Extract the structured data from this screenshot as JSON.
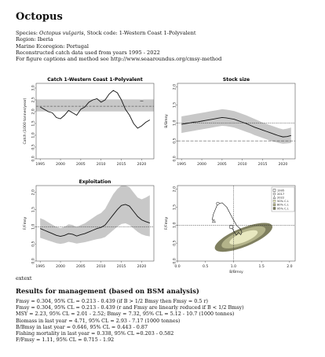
{
  "header": {
    "title": "Octopus",
    "species_prefix": "Species: ",
    "species_italic": "Octopus vulgaris",
    "species_suffix": ", Stock code: 1-Western Coast 1-Polyvalent",
    "region": "Region: Iberia",
    "ecoregion": "Marine Ecoregion: Portugal",
    "catch_years": "Reconstructed catch data used from years 1995 - 2022",
    "figure_note": "For figure captions and method see http://www.seaaroundus.org/cmsy-method"
  },
  "caption_tag": "extext",
  "results": {
    "heading": "Results for management (based on BSM analysis)",
    "lines": [
      "Fmsy = 0.304, 95% CL = 0.213 - 0.439 (if B > 1/2 Bmsy then Fmsy = 0.5 r)",
      "Fmsy = 0.304, 95% CL = 0.213 - 0.439 (r and Fmsy are linearly reduced if B < 1/2 Bmsy)",
      "MSY = 2.23, 95% CL = 2.01 - 2.52; Bmsy = 7.32, 95% CL = 5.12 - 10.7 (1000 tonnes)",
      "Biomass in last year = 4.71, 95% CL = 2.93 - 7.17 (1000 tonnes)",
      "B/Bmsy in last year = 0.646, 95% CL = 0.443 - 0.87",
      "Fishing mortality in last year = 0.338, 95% CL =0.203 - 0.582",
      "F/Fmsy = 1.11, 95% CL = 0.715 - 1.92"
    ]
  },
  "chart_data": [
    {
      "id": "catch",
      "type": "line",
      "title": "Catch 1-Western Coast 1-Polyvalent",
      "ylabel": "Catch (1000 tonnes/year)",
      "xlabel": "",
      "xlim": [
        1994,
        2023
      ],
      "ylim": [
        0,
        3.2
      ],
      "xticks": [
        1995,
        2000,
        2005,
        2010,
        2015,
        2020
      ],
      "yticks": [
        0.0,
        0.5,
        1.0,
        1.5,
        2.0,
        2.5,
        3.0
      ],
      "msy": 2.23,
      "msy_ci": [
        2.01,
        2.52
      ],
      "x": [
        1995,
        1996,
        1997,
        1998,
        1999,
        2000,
        2001,
        2002,
        2003,
        2004,
        2005,
        2006,
        2007,
        2008,
        2009,
        2010,
        2011,
        2012,
        2013,
        2014,
        2015,
        2016,
        2017,
        2018,
        2019,
        2020,
        2021,
        2022
      ],
      "values": [
        2.2,
        2.1,
        2.0,
        1.95,
        1.75,
        1.7,
        1.85,
        2.05,
        1.95,
        1.85,
        2.1,
        2.2,
        2.4,
        2.5,
        2.55,
        2.4,
        2.5,
        2.75,
        2.9,
        2.8,
        2.5,
        2.1,
        1.85,
        1.5,
        1.3,
        1.4,
        1.55,
        1.65
      ],
      "last_year_marker": [
        2020,
        2.45
      ]
    },
    {
      "id": "stock",
      "type": "line",
      "title": "Stock size",
      "ylabel": "B/Bmsy",
      "xlabel": "",
      "xlim": [
        1994,
        2023
      ],
      "ylim": [
        0,
        2.1
      ],
      "xticks": [
        1995,
        2000,
        2005,
        2010,
        2015,
        2020
      ],
      "yticks": [
        0.0,
        0.5,
        1.0,
        1.5,
        2.0
      ],
      "ref_lines": [
        1.0,
        0.5
      ],
      "x": [
        1995,
        1996,
        1997,
        1998,
        1999,
        2000,
        2001,
        2002,
        2003,
        2004,
        2005,
        2006,
        2007,
        2008,
        2009,
        2010,
        2011,
        2012,
        2013,
        2014,
        2015,
        2016,
        2017,
        2018,
        2019,
        2020,
        2021,
        2022
      ],
      "values": [
        0.96,
        0.98,
        1.0,
        1.02,
        1.03,
        1.05,
        1.07,
        1.09,
        1.11,
        1.13,
        1.15,
        1.14,
        1.12,
        1.1,
        1.06,
        1.02,
        0.98,
        0.93,
        0.88,
        0.84,
        0.8,
        0.76,
        0.72,
        0.68,
        0.64,
        0.61,
        0.62,
        0.65
      ],
      "upper": [
        1.18,
        1.2,
        1.22,
        1.24,
        1.26,
        1.28,
        1.3,
        1.32,
        1.34,
        1.36,
        1.38,
        1.37,
        1.35,
        1.33,
        1.29,
        1.25,
        1.21,
        1.16,
        1.11,
        1.06,
        1.01,
        0.97,
        0.93,
        0.89,
        0.85,
        0.82,
        0.84,
        0.87
      ],
      "lower": [
        0.72,
        0.74,
        0.76,
        0.78,
        0.8,
        0.82,
        0.84,
        0.86,
        0.88,
        0.9,
        0.92,
        0.91,
        0.89,
        0.87,
        0.83,
        0.79,
        0.75,
        0.71,
        0.66,
        0.62,
        0.58,
        0.54,
        0.5,
        0.47,
        0.44,
        0.42,
        0.43,
        0.44
      ]
    },
    {
      "id": "exploitation",
      "type": "line",
      "title": "Exploitation",
      "ylabel": "F/Fmsy",
      "xlabel": "",
      "xlim": [
        1994,
        2023
      ],
      "ylim": [
        0,
        2.2
      ],
      "xticks": [
        1995,
        2000,
        2005,
        2010,
        2015,
        2020
      ],
      "yticks": [
        0.0,
        0.5,
        1.0,
        1.5,
        2.0
      ],
      "ref_lines": [
        1.0
      ],
      "x": [
        1995,
        1996,
        1997,
        1998,
        1999,
        2000,
        2001,
        2002,
        2003,
        2004,
        2005,
        2006,
        2007,
        2008,
        2009,
        2010,
        2011,
        2012,
        2013,
        2014,
        2015,
        2016,
        2017,
        2018,
        2019,
        2020,
        2021,
        2022
      ],
      "values": [
        0.95,
        0.9,
        0.85,
        0.8,
        0.75,
        0.72,
        0.75,
        0.8,
        0.78,
        0.73,
        0.77,
        0.8,
        0.85,
        0.9,
        0.95,
        0.98,
        1.05,
        1.2,
        1.35,
        1.5,
        1.62,
        1.65,
        1.6,
        1.45,
        1.3,
        1.2,
        1.15,
        1.11
      ],
      "upper": [
        1.25,
        1.2,
        1.13,
        1.06,
        1.0,
        0.96,
        1.0,
        1.07,
        1.05,
        0.99,
        1.05,
        1.1,
        1.18,
        1.26,
        1.34,
        1.4,
        1.52,
        1.74,
        1.95,
        2.1,
        2.2,
        2.2,
        2.15,
        2.0,
        1.85,
        1.8,
        1.85,
        1.92
      ],
      "lower": [
        0.68,
        0.64,
        0.6,
        0.56,
        0.52,
        0.5,
        0.52,
        0.56,
        0.54,
        0.51,
        0.53,
        0.55,
        0.58,
        0.61,
        0.64,
        0.66,
        0.7,
        0.8,
        0.9,
        1.0,
        1.08,
        1.1,
        1.05,
        0.95,
        0.85,
        0.78,
        0.74,
        0.72
      ]
    },
    {
      "id": "kobe",
      "type": "scatter",
      "title": "",
      "ylabel": "F/Fmsy",
      "xlabel": "B/Bmsy",
      "xlim": [
        0,
        2.1
      ],
      "ylim": [
        0,
        2.1
      ],
      "xticks": [
        0.0,
        0.5,
        1.0,
        1.5,
        2.0
      ],
      "yticks": [
        0.0,
        0.5,
        1.0,
        1.5,
        2.0
      ],
      "ref_x": 1.0,
      "ref_y": 1.0,
      "legend": [
        "1995",
        "2017",
        "2022",
        "50% C.I.",
        "80% C.I.",
        "95% C.I."
      ],
      "legend_position": "top-right",
      "ci_center": [
        1.18,
        0.66
      ],
      "ci_radii_95": [
        0.55,
        0.26
      ],
      "ci_radii_80": [
        0.42,
        0.2
      ],
      "ci_radii_50": [
        0.27,
        0.13
      ],
      "ci_color_95": "#7f7f5f",
      "ci_color_80": "#b3b38a",
      "ci_color_50": "#e8e8c0",
      "trajectory_x": [
        0.96,
        1.0,
        1.05,
        1.09,
        1.13,
        1.15,
        1.12,
        1.06,
        0.98,
        0.88,
        0.8,
        0.72,
        0.64,
        0.62,
        0.65
      ],
      "trajectory_y": [
        0.95,
        0.85,
        0.72,
        0.8,
        0.73,
        0.8,
        0.9,
        0.98,
        1.2,
        1.5,
        1.62,
        1.6,
        1.3,
        1.15,
        1.11
      ],
      "start_point": [
        0.96,
        0.95
      ],
      "mid_point": [
        0.72,
        1.6
      ],
      "end_point": [
        0.65,
        1.11
      ]
    }
  ]
}
